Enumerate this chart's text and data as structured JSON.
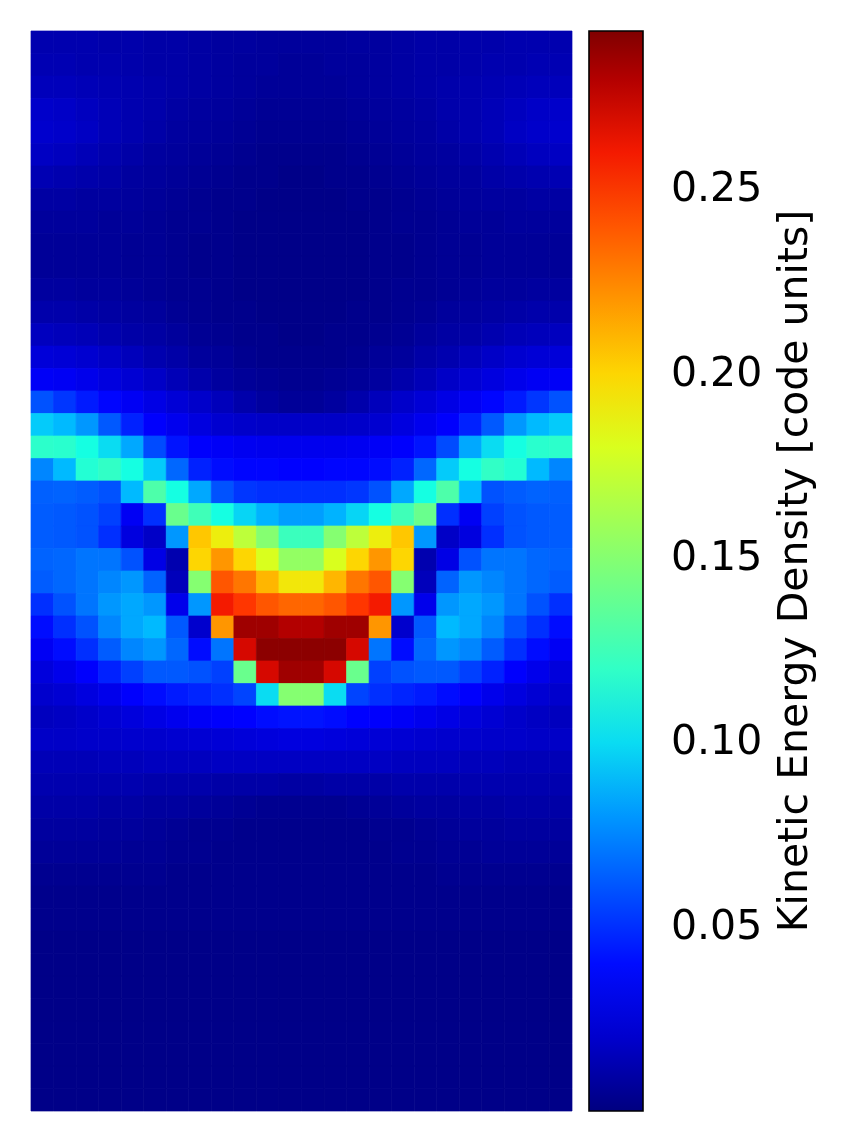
{
  "chart_data": {
    "type": "heatmap",
    "clabel": "Kinetic Energy Density [code units]",
    "categories": [
      null,
      null,
      null,
      null,
      null,
      null,
      null,
      null,
      null,
      null,
      null,
      null,
      null,
      null,
      null,
      null,
      null,
      null,
      null,
      null,
      null,
      null,
      null,
      null
    ],
    "y_categories": [
      null,
      null,
      null,
      null,
      null,
      null,
      null,
      null,
      null,
      null,
      null,
      null,
      null,
      null,
      null,
      null,
      null,
      null,
      null,
      null,
      null,
      null,
      null,
      null,
      null,
      null,
      null,
      null,
      null,
      null,
      null,
      null,
      null,
      null,
      null,
      null,
      null,
      null,
      null,
      null,
      null,
      null,
      null,
      null,
      null,
      null,
      null,
      null
    ],
    "cells": [
      [
        0.012,
        0.012,
        0.012,
        0.011,
        0.011,
        0.01,
        0.01,
        0.009,
        0.008,
        0.008,
        0.007,
        0.007,
        0.007,
        0.007,
        0.008,
        0.008,
        0.009,
        0.01,
        0.01,
        0.011,
        0.011,
        0.012,
        0.012,
        0.012
      ],
      [
        0.013,
        0.013,
        0.012,
        0.012,
        0.011,
        0.01,
        0.01,
        0.009,
        0.008,
        0.007,
        0.007,
        0.006,
        0.006,
        0.007,
        0.007,
        0.008,
        0.009,
        0.01,
        0.01,
        0.011,
        0.012,
        0.012,
        0.013,
        0.013
      ],
      [
        0.015,
        0.015,
        0.014,
        0.013,
        0.012,
        0.011,
        0.01,
        0.009,
        0.008,
        0.007,
        0.006,
        0.006,
        0.006,
        0.006,
        0.007,
        0.008,
        0.009,
        0.01,
        0.011,
        0.012,
        0.013,
        0.014,
        0.015,
        0.015
      ],
      [
        0.019,
        0.018,
        0.016,
        0.014,
        0.012,
        0.011,
        0.009,
        0.008,
        0.007,
        0.006,
        0.005,
        0.005,
        0.005,
        0.005,
        0.006,
        0.007,
        0.008,
        0.009,
        0.011,
        0.012,
        0.014,
        0.016,
        0.018,
        0.019
      ],
      [
        0.02,
        0.019,
        0.017,
        0.014,
        0.012,
        0.01,
        0.008,
        0.007,
        0.006,
        0.005,
        0.004,
        0.004,
        0.004,
        0.004,
        0.005,
        0.006,
        0.007,
        0.008,
        0.01,
        0.012,
        0.014,
        0.017,
        0.019,
        0.02
      ],
      [
        0.017,
        0.016,
        0.014,
        0.012,
        0.01,
        0.008,
        0.007,
        0.006,
        0.005,
        0.004,
        0.003,
        0.003,
        0.003,
        0.003,
        0.004,
        0.005,
        0.006,
        0.007,
        0.008,
        0.01,
        0.012,
        0.014,
        0.016,
        0.017
      ],
      [
        0.013,
        0.012,
        0.011,
        0.01,
        0.008,
        0.007,
        0.006,
        0.005,
        0.004,
        0.003,
        0.003,
        0.002,
        0.002,
        0.003,
        0.003,
        0.004,
        0.005,
        0.006,
        0.007,
        0.008,
        0.01,
        0.011,
        0.012,
        0.013
      ],
      [
        0.009,
        0.009,
        0.008,
        0.008,
        0.007,
        0.006,
        0.005,
        0.004,
        0.003,
        0.003,
        0.002,
        0.002,
        0.002,
        0.002,
        0.003,
        0.003,
        0.004,
        0.005,
        0.006,
        0.007,
        0.008,
        0.008,
        0.009,
        0.009
      ],
      [
        0.007,
        0.007,
        0.007,
        0.006,
        0.006,
        0.005,
        0.004,
        0.004,
        0.003,
        0.002,
        0.002,
        0.002,
        0.002,
        0.002,
        0.002,
        0.003,
        0.004,
        0.004,
        0.005,
        0.006,
        0.006,
        0.007,
        0.007,
        0.007
      ],
      [
        0.006,
        0.006,
        0.006,
        0.006,
        0.005,
        0.005,
        0.004,
        0.003,
        0.003,
        0.002,
        0.002,
        0.002,
        0.002,
        0.002,
        0.002,
        0.003,
        0.003,
        0.004,
        0.005,
        0.005,
        0.006,
        0.006,
        0.006,
        0.006
      ],
      [
        0.006,
        0.006,
        0.006,
        0.006,
        0.005,
        0.005,
        0.004,
        0.003,
        0.003,
        0.002,
        0.002,
        0.002,
        0.002,
        0.002,
        0.002,
        0.003,
        0.003,
        0.004,
        0.005,
        0.005,
        0.006,
        0.006,
        0.006,
        0.006
      ],
      [
        0.008,
        0.008,
        0.007,
        0.007,
        0.006,
        0.005,
        0.004,
        0.004,
        0.003,
        0.002,
        0.002,
        0.002,
        0.002,
        0.002,
        0.002,
        0.003,
        0.004,
        0.004,
        0.005,
        0.006,
        0.007,
        0.007,
        0.008,
        0.008
      ],
      [
        0.011,
        0.011,
        0.01,
        0.009,
        0.008,
        0.007,
        0.005,
        0.004,
        0.003,
        0.003,
        0.002,
        0.002,
        0.002,
        0.002,
        0.003,
        0.003,
        0.004,
        0.005,
        0.007,
        0.008,
        0.009,
        0.01,
        0.011,
        0.011
      ],
      [
        0.016,
        0.015,
        0.014,
        0.012,
        0.01,
        0.009,
        0.007,
        0.005,
        0.004,
        0.003,
        0.003,
        0.002,
        0.002,
        0.003,
        0.003,
        0.004,
        0.005,
        0.007,
        0.009,
        0.01,
        0.012,
        0.014,
        0.015,
        0.016
      ],
      [
        0.024,
        0.023,
        0.021,
        0.018,
        0.015,
        0.012,
        0.01,
        0.007,
        0.006,
        0.004,
        0.003,
        0.003,
        0.003,
        0.003,
        0.004,
        0.006,
        0.007,
        0.01,
        0.012,
        0.015,
        0.018,
        0.021,
        0.023,
        0.024
      ],
      [
        0.034,
        0.033,
        0.03,
        0.026,
        0.022,
        0.018,
        0.014,
        0.011,
        0.008,
        0.006,
        0.005,
        0.004,
        0.004,
        0.005,
        0.006,
        0.008,
        0.011,
        0.014,
        0.018,
        0.022,
        0.026,
        0.03,
        0.033,
        0.034
      ],
      [
        0.06,
        0.052,
        0.044,
        0.038,
        0.033,
        0.028,
        0.023,
        0.019,
        0.015,
        0.011,
        0.008,
        0.006,
        0.006,
        0.008,
        0.011,
        0.015,
        0.019,
        0.023,
        0.028,
        0.033,
        0.038,
        0.044,
        0.052,
        0.06
      ],
      [
        0.095,
        0.09,
        0.08,
        0.062,
        0.046,
        0.036,
        0.031,
        0.026,
        0.021,
        0.019,
        0.018,
        0.018,
        0.018,
        0.018,
        0.019,
        0.021,
        0.026,
        0.031,
        0.036,
        0.046,
        0.062,
        0.08,
        0.09,
        0.095
      ],
      [
        0.118,
        0.117,
        0.11,
        0.1,
        0.085,
        0.058,
        0.042,
        0.036,
        0.034,
        0.032,
        0.031,
        0.031,
        0.031,
        0.031,
        0.032,
        0.034,
        0.036,
        0.042,
        0.058,
        0.085,
        0.1,
        0.11,
        0.117,
        0.118
      ],
      [
        0.075,
        0.09,
        0.115,
        0.12,
        0.11,
        0.095,
        0.066,
        0.046,
        0.04,
        0.038,
        0.038,
        0.037,
        0.037,
        0.038,
        0.038,
        0.04,
        0.046,
        0.066,
        0.095,
        0.11,
        0.12,
        0.115,
        0.09,
        0.075
      ],
      [
        0.064,
        0.065,
        0.063,
        0.06,
        0.09,
        0.13,
        0.11,
        0.085,
        0.06,
        0.052,
        0.05,
        0.05,
        0.05,
        0.05,
        0.052,
        0.06,
        0.085,
        0.11,
        0.13,
        0.09,
        0.06,
        0.063,
        0.065,
        0.064
      ],
      [
        0.063,
        0.062,
        0.06,
        0.055,
        0.033,
        0.05,
        0.14,
        0.125,
        0.11,
        0.098,
        0.088,
        0.082,
        0.082,
        0.088,
        0.098,
        0.11,
        0.125,
        0.14,
        0.05,
        0.033,
        0.055,
        0.06,
        0.062,
        0.063
      ],
      [
        0.063,
        0.062,
        0.06,
        0.05,
        0.026,
        0.018,
        0.08,
        0.205,
        0.19,
        0.17,
        0.15,
        0.123,
        0.123,
        0.15,
        0.17,
        0.19,
        0.205,
        0.08,
        0.018,
        0.026,
        0.05,
        0.06,
        0.062,
        0.063
      ],
      [
        0.065,
        0.066,
        0.07,
        0.07,
        0.06,
        0.028,
        0.012,
        0.2,
        0.22,
        0.2,
        0.18,
        0.155,
        0.155,
        0.18,
        0.2,
        0.22,
        0.2,
        0.012,
        0.028,
        0.06,
        0.07,
        0.07,
        0.066,
        0.065
      ],
      [
        0.063,
        0.066,
        0.07,
        0.075,
        0.08,
        0.065,
        0.015,
        0.15,
        0.24,
        0.23,
        0.21,
        0.193,
        0.193,
        0.21,
        0.23,
        0.24,
        0.15,
        0.015,
        0.065,
        0.08,
        0.075,
        0.07,
        0.066,
        0.063
      ],
      [
        0.05,
        0.06,
        0.07,
        0.08,
        0.085,
        0.08,
        0.03,
        0.08,
        0.26,
        0.25,
        0.24,
        0.235,
        0.235,
        0.24,
        0.25,
        0.26,
        0.08,
        0.03,
        0.08,
        0.085,
        0.08,
        0.07,
        0.06,
        0.05
      ],
      [
        0.04,
        0.05,
        0.06,
        0.075,
        0.085,
        0.09,
        0.062,
        0.02,
        0.22,
        0.285,
        0.285,
        0.28,
        0.28,
        0.285,
        0.285,
        0.22,
        0.02,
        0.062,
        0.09,
        0.085,
        0.075,
        0.06,
        0.05,
        0.04
      ],
      [
        0.033,
        0.04,
        0.05,
        0.063,
        0.075,
        0.08,
        0.066,
        0.04,
        0.07,
        0.27,
        0.29,
        0.29,
        0.29,
        0.29,
        0.27,
        0.07,
        0.04,
        0.066,
        0.08,
        0.075,
        0.063,
        0.05,
        0.04,
        0.033
      ],
      [
        0.025,
        0.03,
        0.036,
        0.046,
        0.055,
        0.062,
        0.062,
        0.06,
        0.055,
        0.14,
        0.27,
        0.285,
        0.285,
        0.27,
        0.14,
        0.055,
        0.06,
        0.062,
        0.062,
        0.055,
        0.046,
        0.036,
        0.03,
        0.025
      ],
      [
        0.02,
        0.022,
        0.026,
        0.03,
        0.036,
        0.04,
        0.044,
        0.047,
        0.05,
        0.056,
        0.1,
        0.15,
        0.15,
        0.1,
        0.056,
        0.05,
        0.047,
        0.044,
        0.04,
        0.036,
        0.03,
        0.026,
        0.022,
        0.02
      ],
      [
        0.016,
        0.017,
        0.019,
        0.022,
        0.025,
        0.028,
        0.031,
        0.034,
        0.036,
        0.037,
        0.04,
        0.042,
        0.042,
        0.04,
        0.037,
        0.036,
        0.034,
        0.031,
        0.028,
        0.025,
        0.022,
        0.019,
        0.017,
        0.016
      ],
      [
        0.018,
        0.018,
        0.019,
        0.019,
        0.02,
        0.02,
        0.021,
        0.022,
        0.023,
        0.024,
        0.025,
        0.026,
        0.026,
        0.025,
        0.024,
        0.023,
        0.022,
        0.021,
        0.02,
        0.02,
        0.019,
        0.019,
        0.018,
        0.018
      ],
      [
        0.014,
        0.014,
        0.014,
        0.015,
        0.015,
        0.016,
        0.016,
        0.016,
        0.017,
        0.017,
        0.017,
        0.017,
        0.017,
        0.017,
        0.017,
        0.017,
        0.016,
        0.016,
        0.016,
        0.015,
        0.015,
        0.014,
        0.014,
        0.014
      ],
      [
        0.012,
        0.012,
        0.012,
        0.012,
        0.012,
        0.011,
        0.011,
        0.011,
        0.01,
        0.01,
        0.01,
        0.009,
        0.009,
        0.01,
        0.01,
        0.01,
        0.011,
        0.011,
        0.011,
        0.012,
        0.012,
        0.012,
        0.012,
        0.012
      ],
      [
        0.01,
        0.01,
        0.01,
        0.009,
        0.009,
        0.008,
        0.008,
        0.007,
        0.006,
        0.005,
        0.004,
        0.004,
        0.004,
        0.004,
        0.005,
        0.006,
        0.007,
        0.008,
        0.008,
        0.009,
        0.009,
        0.01,
        0.01,
        0.01
      ],
      [
        0.008,
        0.008,
        0.008,
        0.007,
        0.007,
        0.006,
        0.005,
        0.004,
        0.004,
        0.003,
        0.003,
        0.003,
        0.003,
        0.003,
        0.003,
        0.004,
        0.004,
        0.005,
        0.006,
        0.007,
        0.007,
        0.008,
        0.008,
        0.008
      ],
      [
        0.006,
        0.006,
        0.006,
        0.006,
        0.005,
        0.005,
        0.004,
        0.004,
        0.003,
        0.003,
        0.003,
        0.003,
        0.003,
        0.003,
        0.003,
        0.003,
        0.004,
        0.004,
        0.005,
        0.005,
        0.006,
        0.006,
        0.006,
        0.006
      ],
      [
        0.004,
        0.004,
        0.004,
        0.004,
        0.004,
        0.004,
        0.003,
        0.003,
        0.003,
        0.003,
        0.003,
        0.003,
        0.003,
        0.003,
        0.003,
        0.003,
        0.003,
        0.003,
        0.004,
        0.004,
        0.004,
        0.004,
        0.004,
        0.004
      ],
      [
        0.003,
        0.003,
        0.003,
        0.003,
        0.003,
        0.003,
        0.003,
        0.003,
        0.003,
        0.003,
        0.003,
        0.003,
        0.003,
        0.003,
        0.003,
        0.003,
        0.003,
        0.003,
        0.003,
        0.003,
        0.003,
        0.003,
        0.003,
        0.003
      ],
      [
        0.003,
        0.003,
        0.003,
        0.003,
        0.003,
        0.003,
        0.003,
        0.003,
        0.003,
        0.003,
        0.003,
        0.003,
        0.003,
        0.003,
        0.003,
        0.003,
        0.003,
        0.003,
        0.003,
        0.003,
        0.003,
        0.003,
        0.003,
        0.003
      ],
      [
        0.002,
        0.002,
        0.002,
        0.002,
        0.002,
        0.002,
        0.002,
        0.002,
        0.002,
        0.002,
        0.002,
        0.002,
        0.002,
        0.002,
        0.002,
        0.002,
        0.002,
        0.002,
        0.002,
        0.002,
        0.002,
        0.002,
        0.002,
        0.002
      ],
      [
        0.002,
        0.002,
        0.002,
        0.002,
        0.002,
        0.002,
        0.002,
        0.002,
        0.002,
        0.002,
        0.002,
        0.002,
        0.002,
        0.002,
        0.002,
        0.002,
        0.002,
        0.002,
        0.002,
        0.002,
        0.002,
        0.002,
        0.002,
        0.002
      ],
      [
        0.002,
        0.002,
        0.002,
        0.002,
        0.002,
        0.002,
        0.002,
        0.002,
        0.002,
        0.002,
        0.002,
        0.002,
        0.002,
        0.002,
        0.002,
        0.002,
        0.002,
        0.002,
        0.002,
        0.002,
        0.002,
        0.002,
        0.002,
        0.002
      ],
      [
        0.002,
        0.002,
        0.002,
        0.002,
        0.002,
        0.002,
        0.002,
        0.002,
        0.002,
        0.002,
        0.002,
        0.002,
        0.002,
        0.002,
        0.002,
        0.002,
        0.002,
        0.002,
        0.002,
        0.002,
        0.002,
        0.002,
        0.002,
        0.002
      ],
      [
        0.002,
        0.002,
        0.002,
        0.002,
        0.002,
        0.002,
        0.002,
        0.002,
        0.002,
        0.002,
        0.002,
        0.002,
        0.002,
        0.002,
        0.002,
        0.002,
        0.002,
        0.002,
        0.002,
        0.002,
        0.002,
        0.002,
        0.002,
        0.002
      ],
      [
        0.002,
        0.002,
        0.002,
        0.002,
        0.002,
        0.002,
        0.002,
        0.002,
        0.002,
        0.002,
        0.002,
        0.002,
        0.002,
        0.002,
        0.002,
        0.002,
        0.002,
        0.002,
        0.002,
        0.002,
        0.002,
        0.002,
        0.002,
        0.002
      ],
      [
        0.002,
        0.002,
        0.002,
        0.002,
        0.002,
        0.002,
        0.002,
        0.002,
        0.002,
        0.002,
        0.002,
        0.002,
        0.002,
        0.002,
        0.002,
        0.002,
        0.002,
        0.002,
        0.002,
        0.002,
        0.002,
        0.002,
        0.002,
        0.002
      ],
      [
        0.002,
        0.002,
        0.002,
        0.002,
        0.002,
        0.002,
        0.002,
        0.002,
        0.002,
        0.002,
        0.002,
        0.002,
        0.002,
        0.002,
        0.002,
        0.002,
        0.002,
        0.002,
        0.002,
        0.002,
        0.002,
        0.002,
        0.002,
        0.002
      ]
    ],
    "clim": [
      0,
      0.293
    ],
    "cticks": [
      0.05,
      {
        "value": 0.1,
        "label": "0.10"
      },
      0.15,
      {
        "value": 0.2,
        "label": "0.20"
      },
      0.25
    ]
  }
}
